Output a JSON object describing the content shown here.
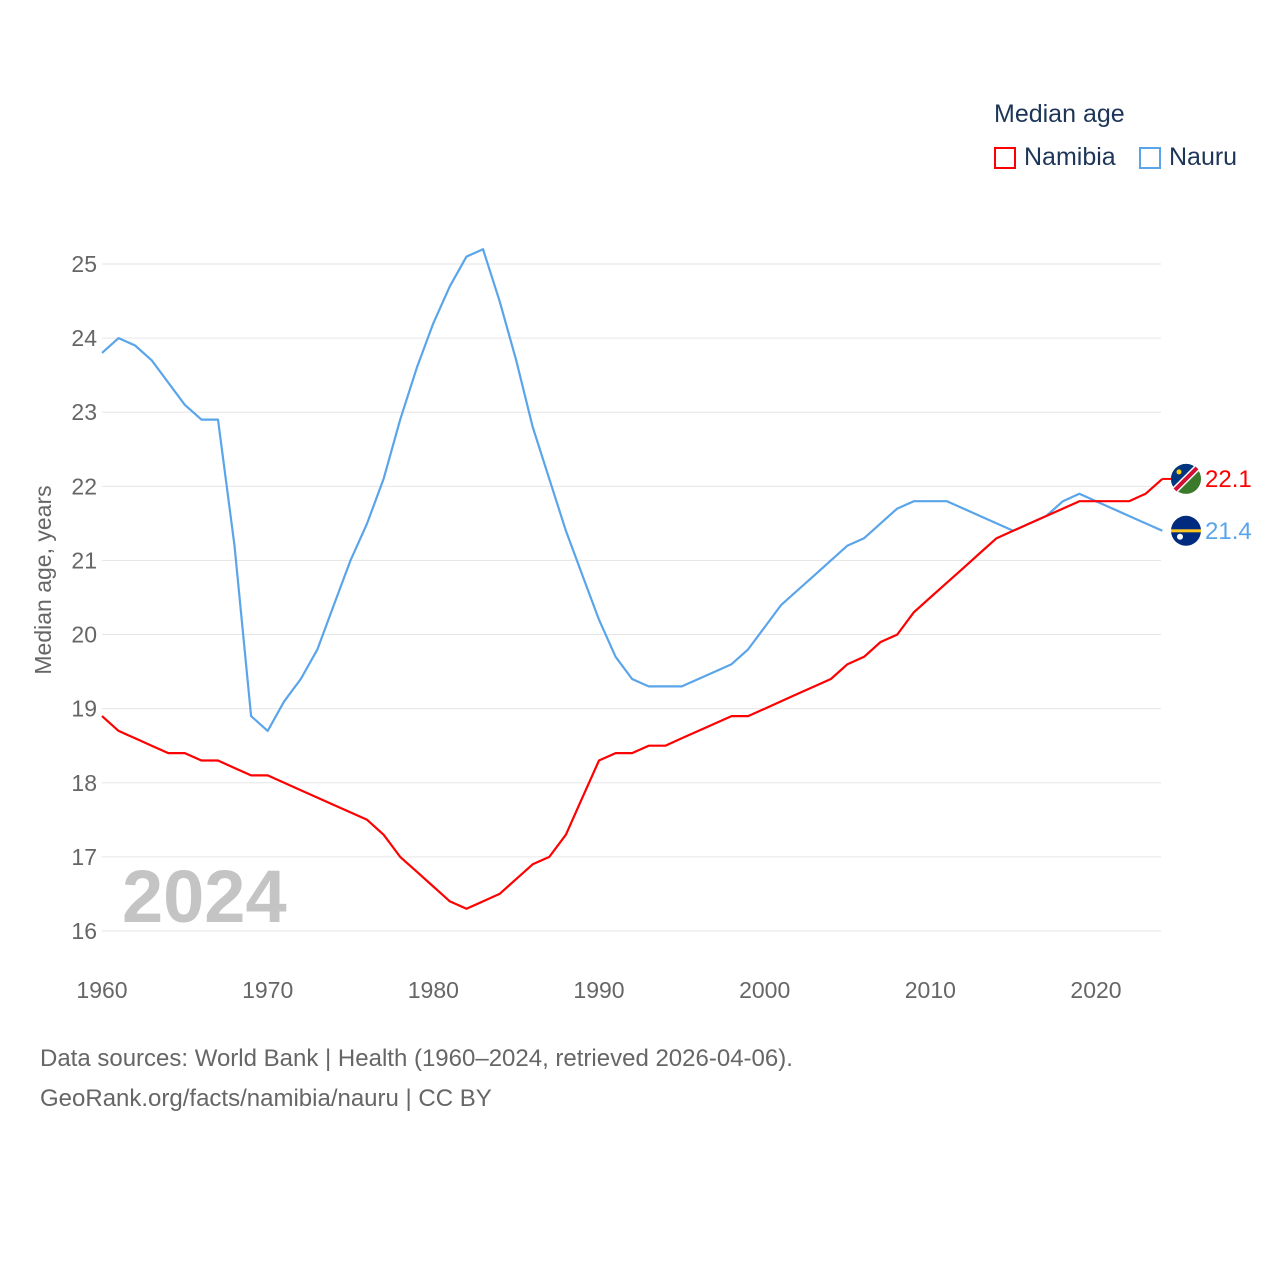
{
  "chart_data": {
    "type": "line",
    "legend_title": "Median age",
    "ylabel": "Median age, years",
    "xlabel": "",
    "ylim": [
      16,
      25
    ],
    "xlim": [
      1960,
      2024
    ],
    "yticks": [
      16,
      17,
      18,
      19,
      20,
      21,
      22,
      23,
      24,
      25
    ],
    "xticks": [
      1960,
      1970,
      1980,
      1990,
      2000,
      2010,
      2020
    ],
    "grid": true,
    "legend_position": "top-right",
    "year_watermark": "2024",
    "x": [
      1960,
      1961,
      1962,
      1963,
      1964,
      1965,
      1966,
      1967,
      1968,
      1969,
      1970,
      1971,
      1972,
      1973,
      1974,
      1975,
      1976,
      1977,
      1978,
      1979,
      1980,
      1981,
      1982,
      1983,
      1984,
      1985,
      1986,
      1987,
      1988,
      1989,
      1990,
      1991,
      1992,
      1993,
      1994,
      1995,
      1996,
      1997,
      1998,
      1999,
      2000,
      2001,
      2002,
      2003,
      2004,
      2005,
      2006,
      2007,
      2008,
      2009,
      2010,
      2011,
      2012,
      2013,
      2014,
      2015,
      2016,
      2017,
      2018,
      2019,
      2020,
      2021,
      2022,
      2023,
      2024
    ],
    "series": [
      {
        "name": "Namibia",
        "color": "#ff0000",
        "end_label": "22.1",
        "values": [
          18.9,
          18.7,
          18.6,
          18.5,
          18.4,
          18.4,
          18.3,
          18.3,
          18.2,
          18.1,
          18.1,
          18.0,
          17.9,
          17.8,
          17.7,
          17.6,
          17.5,
          17.3,
          17.0,
          16.8,
          16.6,
          16.4,
          16.3,
          16.4,
          16.5,
          16.7,
          16.9,
          17.0,
          17.3,
          17.8,
          18.3,
          18.4,
          18.4,
          18.5,
          18.5,
          18.6,
          18.7,
          18.8,
          18.9,
          18.9,
          19.0,
          19.1,
          19.2,
          19.3,
          19.4,
          19.6,
          19.7,
          19.9,
          20.0,
          20.3,
          20.5,
          20.7,
          20.9,
          21.1,
          21.3,
          21.4,
          21.5,
          21.6,
          21.7,
          21.8,
          21.8,
          21.8,
          21.8,
          21.9,
          22.1
        ]
      },
      {
        "name": "Nauru",
        "color": "#5aa5ea",
        "end_label": "21.4",
        "values": [
          23.8,
          24.0,
          23.9,
          23.7,
          23.4,
          23.1,
          22.9,
          22.9,
          21.2,
          18.9,
          18.7,
          19.1,
          19.4,
          19.8,
          20.4,
          21.0,
          21.5,
          22.1,
          22.9,
          23.6,
          24.2,
          24.7,
          25.1,
          25.2,
          24.5,
          23.7,
          22.8,
          22.1,
          21.4,
          20.8,
          20.2,
          19.7,
          19.4,
          19.3,
          19.3,
          19.3,
          19.4,
          19.5,
          19.6,
          19.8,
          20.1,
          20.4,
          20.6,
          20.8,
          21.0,
          21.2,
          21.3,
          21.5,
          21.7,
          21.8,
          21.8,
          21.8,
          21.7,
          21.6,
          21.5,
          21.4,
          21.5,
          21.6,
          21.8,
          21.9,
          21.8,
          21.7,
          21.6,
          21.5,
          21.4
        ]
      }
    ]
  },
  "footer": {
    "line1": "Data sources: World Bank | Health (1960–2024, retrieved 2026-04-06).",
    "line2": "GeoRank.org/facts/namibia/nauru | CC BY"
  }
}
